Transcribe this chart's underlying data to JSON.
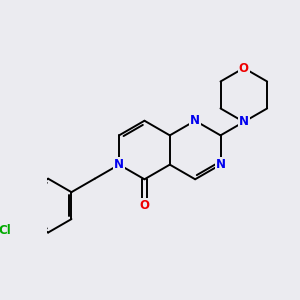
{
  "bg_color": "#ebebf0",
  "bond_color": "#000000",
  "bond_width": 1.4,
  "atom_colors": {
    "N": "#0000ee",
    "O": "#ee0000",
    "Cl": "#00aa00",
    "C": "#000000"
  },
  "font_size_atom": 8.5
}
